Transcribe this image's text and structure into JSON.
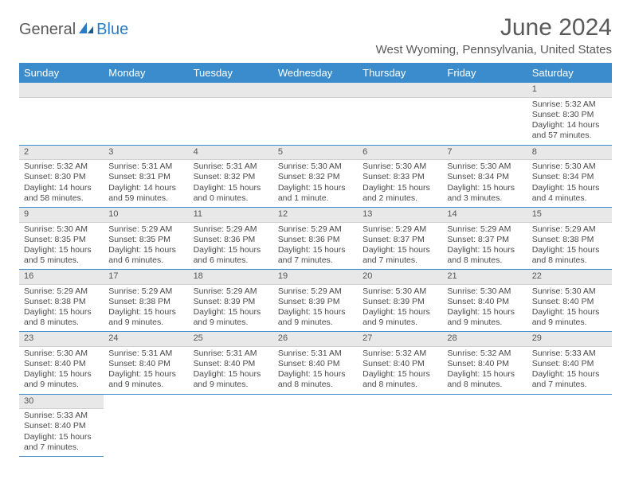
{
  "logo": {
    "part1": "General",
    "part2": "Blue"
  },
  "title": "June 2024",
  "location": "West Wyoming, Pennsylvania, United States",
  "colors": {
    "header_bg": "#3b8ccc",
    "header_text": "#ffffff",
    "daynum_bg": "#e8e8e8",
    "border": "#3b8ccc",
    "logo_gray": "#5a5a5a",
    "logo_blue": "#2b7cc4"
  },
  "weekdays": [
    "Sunday",
    "Monday",
    "Tuesday",
    "Wednesday",
    "Thursday",
    "Friday",
    "Saturday"
  ],
  "weeks": [
    [
      null,
      null,
      null,
      null,
      null,
      null,
      {
        "n": "1",
        "sr": "Sunrise: 5:32 AM",
        "ss": "Sunset: 8:30 PM",
        "dl": "Daylight: 14 hours and 57 minutes."
      }
    ],
    [
      {
        "n": "2",
        "sr": "Sunrise: 5:32 AM",
        "ss": "Sunset: 8:30 PM",
        "dl": "Daylight: 14 hours and 58 minutes."
      },
      {
        "n": "3",
        "sr": "Sunrise: 5:31 AM",
        "ss": "Sunset: 8:31 PM",
        "dl": "Daylight: 14 hours and 59 minutes."
      },
      {
        "n": "4",
        "sr": "Sunrise: 5:31 AM",
        "ss": "Sunset: 8:32 PM",
        "dl": "Daylight: 15 hours and 0 minutes."
      },
      {
        "n": "5",
        "sr": "Sunrise: 5:30 AM",
        "ss": "Sunset: 8:32 PM",
        "dl": "Daylight: 15 hours and 1 minute."
      },
      {
        "n": "6",
        "sr": "Sunrise: 5:30 AM",
        "ss": "Sunset: 8:33 PM",
        "dl": "Daylight: 15 hours and 2 minutes."
      },
      {
        "n": "7",
        "sr": "Sunrise: 5:30 AM",
        "ss": "Sunset: 8:34 PM",
        "dl": "Daylight: 15 hours and 3 minutes."
      },
      {
        "n": "8",
        "sr": "Sunrise: 5:30 AM",
        "ss": "Sunset: 8:34 PM",
        "dl": "Daylight: 15 hours and 4 minutes."
      }
    ],
    [
      {
        "n": "9",
        "sr": "Sunrise: 5:30 AM",
        "ss": "Sunset: 8:35 PM",
        "dl": "Daylight: 15 hours and 5 minutes."
      },
      {
        "n": "10",
        "sr": "Sunrise: 5:29 AM",
        "ss": "Sunset: 8:35 PM",
        "dl": "Daylight: 15 hours and 6 minutes."
      },
      {
        "n": "11",
        "sr": "Sunrise: 5:29 AM",
        "ss": "Sunset: 8:36 PM",
        "dl": "Daylight: 15 hours and 6 minutes."
      },
      {
        "n": "12",
        "sr": "Sunrise: 5:29 AM",
        "ss": "Sunset: 8:36 PM",
        "dl": "Daylight: 15 hours and 7 minutes."
      },
      {
        "n": "13",
        "sr": "Sunrise: 5:29 AM",
        "ss": "Sunset: 8:37 PM",
        "dl": "Daylight: 15 hours and 7 minutes."
      },
      {
        "n": "14",
        "sr": "Sunrise: 5:29 AM",
        "ss": "Sunset: 8:37 PM",
        "dl": "Daylight: 15 hours and 8 minutes."
      },
      {
        "n": "15",
        "sr": "Sunrise: 5:29 AM",
        "ss": "Sunset: 8:38 PM",
        "dl": "Daylight: 15 hours and 8 minutes."
      }
    ],
    [
      {
        "n": "16",
        "sr": "Sunrise: 5:29 AM",
        "ss": "Sunset: 8:38 PM",
        "dl": "Daylight: 15 hours and 8 minutes."
      },
      {
        "n": "17",
        "sr": "Sunrise: 5:29 AM",
        "ss": "Sunset: 8:38 PM",
        "dl": "Daylight: 15 hours and 9 minutes."
      },
      {
        "n": "18",
        "sr": "Sunrise: 5:29 AM",
        "ss": "Sunset: 8:39 PM",
        "dl": "Daylight: 15 hours and 9 minutes."
      },
      {
        "n": "19",
        "sr": "Sunrise: 5:29 AM",
        "ss": "Sunset: 8:39 PM",
        "dl": "Daylight: 15 hours and 9 minutes."
      },
      {
        "n": "20",
        "sr": "Sunrise: 5:30 AM",
        "ss": "Sunset: 8:39 PM",
        "dl": "Daylight: 15 hours and 9 minutes."
      },
      {
        "n": "21",
        "sr": "Sunrise: 5:30 AM",
        "ss": "Sunset: 8:40 PM",
        "dl": "Daylight: 15 hours and 9 minutes."
      },
      {
        "n": "22",
        "sr": "Sunrise: 5:30 AM",
        "ss": "Sunset: 8:40 PM",
        "dl": "Daylight: 15 hours and 9 minutes."
      }
    ],
    [
      {
        "n": "23",
        "sr": "Sunrise: 5:30 AM",
        "ss": "Sunset: 8:40 PM",
        "dl": "Daylight: 15 hours and 9 minutes."
      },
      {
        "n": "24",
        "sr": "Sunrise: 5:31 AM",
        "ss": "Sunset: 8:40 PM",
        "dl": "Daylight: 15 hours and 9 minutes."
      },
      {
        "n": "25",
        "sr": "Sunrise: 5:31 AM",
        "ss": "Sunset: 8:40 PM",
        "dl": "Daylight: 15 hours and 9 minutes."
      },
      {
        "n": "26",
        "sr": "Sunrise: 5:31 AM",
        "ss": "Sunset: 8:40 PM",
        "dl": "Daylight: 15 hours and 8 minutes."
      },
      {
        "n": "27",
        "sr": "Sunrise: 5:32 AM",
        "ss": "Sunset: 8:40 PM",
        "dl": "Daylight: 15 hours and 8 minutes."
      },
      {
        "n": "28",
        "sr": "Sunrise: 5:32 AM",
        "ss": "Sunset: 8:40 PM",
        "dl": "Daylight: 15 hours and 8 minutes."
      },
      {
        "n": "29",
        "sr": "Sunrise: 5:33 AM",
        "ss": "Sunset: 8:40 PM",
        "dl": "Daylight: 15 hours and 7 minutes."
      }
    ],
    [
      {
        "n": "30",
        "sr": "Sunrise: 5:33 AM",
        "ss": "Sunset: 8:40 PM",
        "dl": "Daylight: 15 hours and 7 minutes."
      },
      null,
      null,
      null,
      null,
      null,
      null
    ]
  ]
}
